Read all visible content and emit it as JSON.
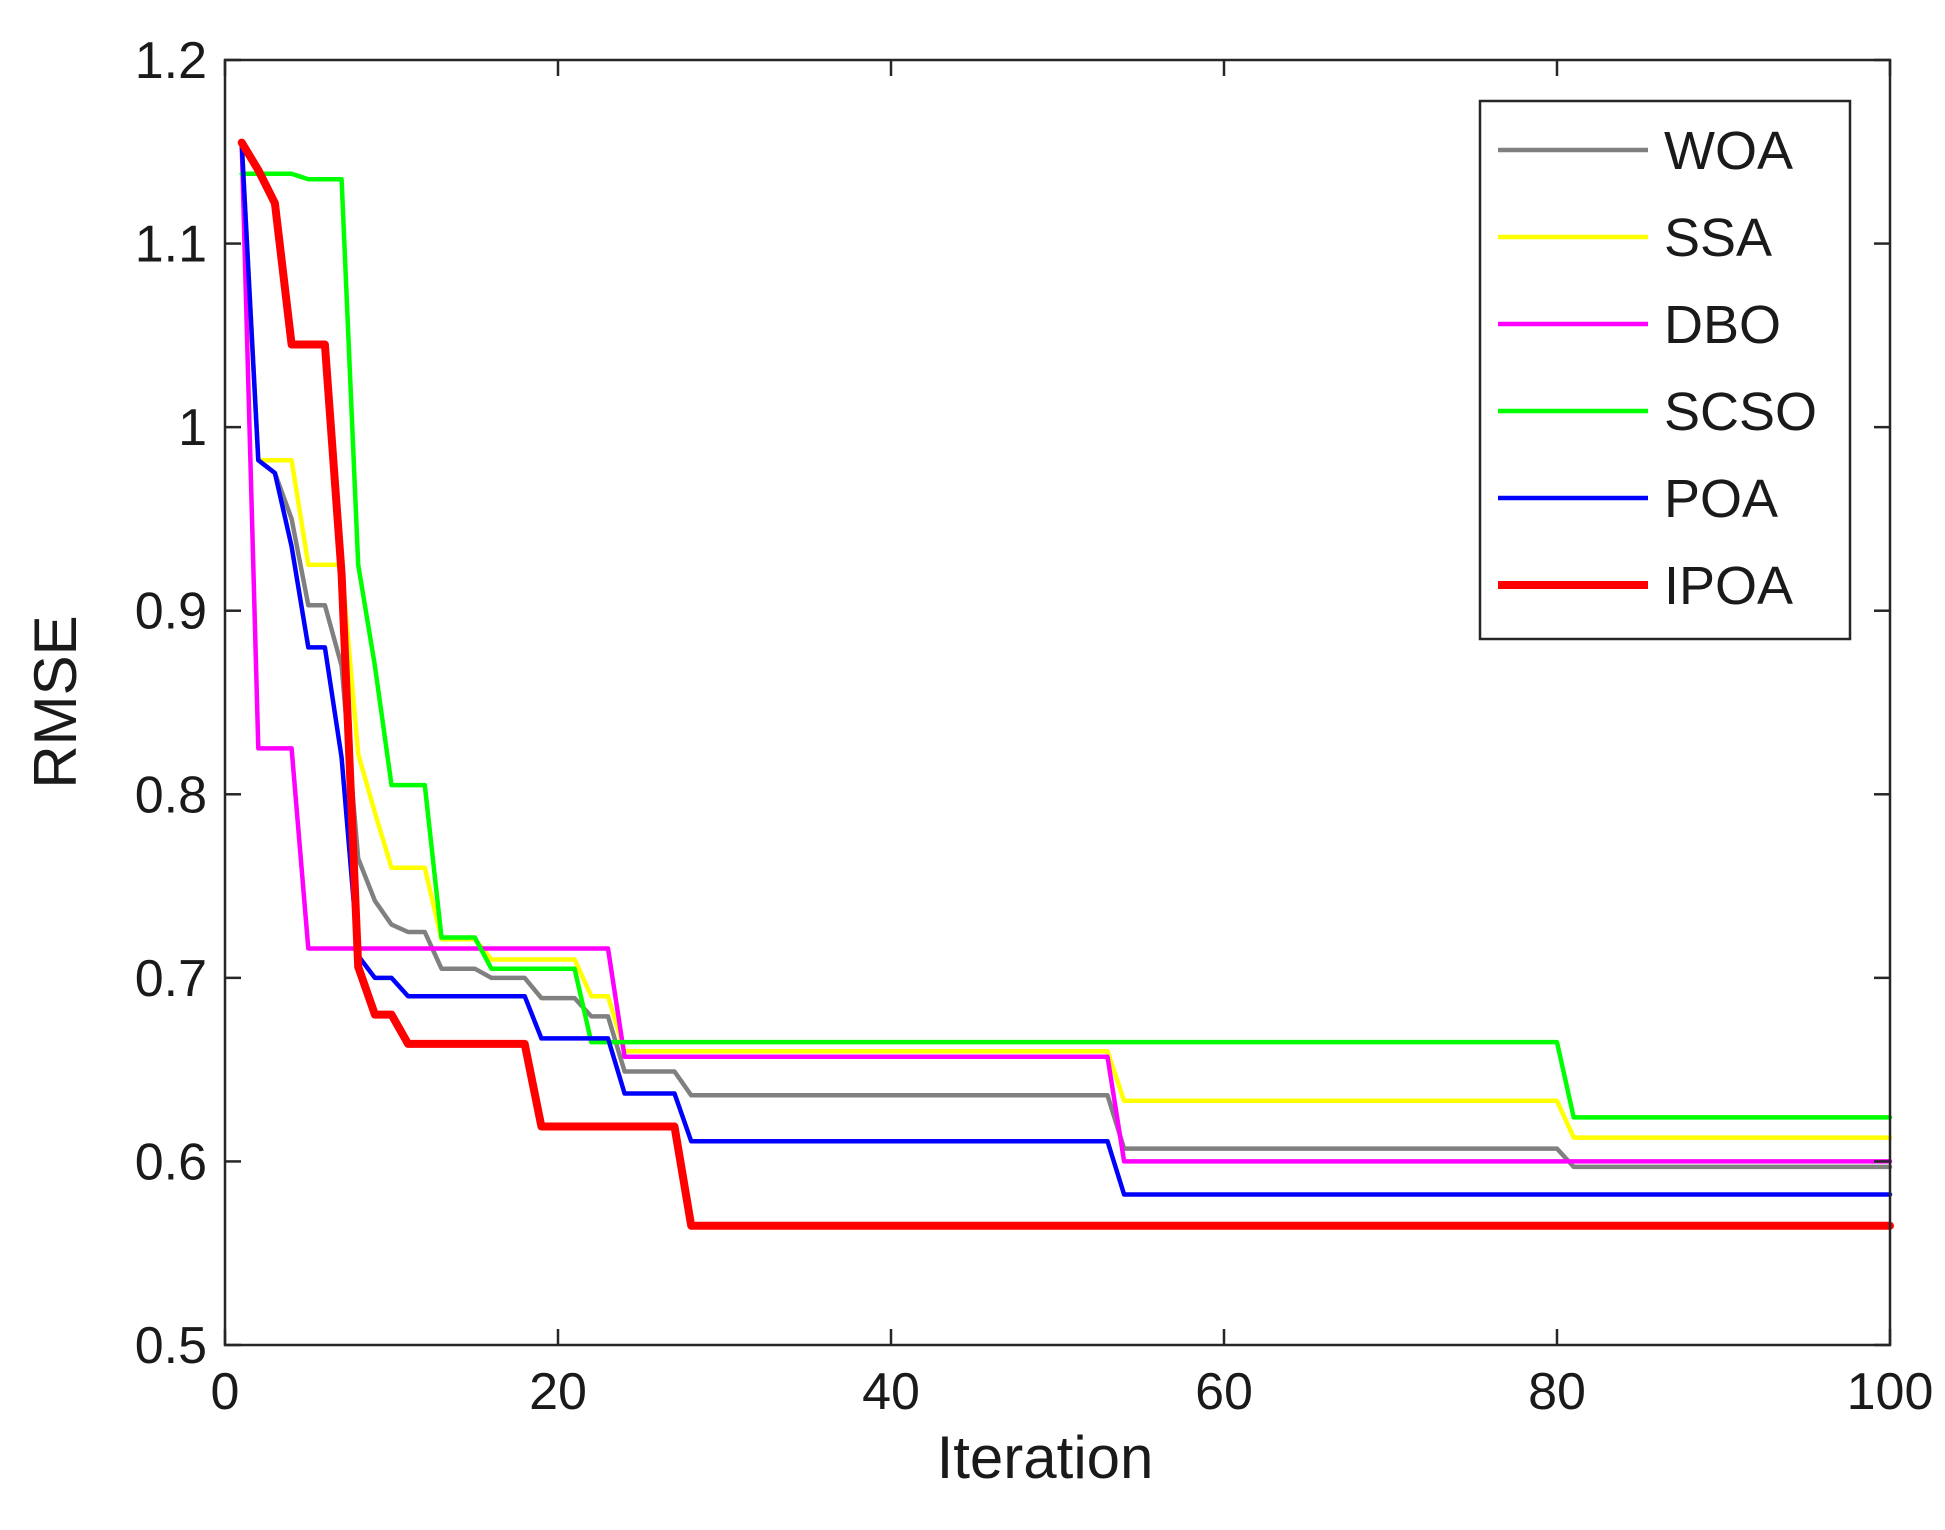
{
  "chart_data": {
    "type": "line",
    "title": "",
    "xlabel": "Iteration",
    "ylabel": "RMSE",
    "xlim": [
      0,
      100
    ],
    "ylim": [
      0.5,
      1.2
    ],
    "xticks": [
      0,
      20,
      40,
      60,
      80,
      100
    ],
    "xtick_labels": [
      "0",
      "20",
      "40",
      "60",
      "80",
      "100"
    ],
    "yticks": [
      0.5,
      0.6,
      0.7,
      0.8,
      0.9,
      1.0,
      1.1,
      1.2
    ],
    "ytick_labels": [
      "0.5",
      "0.6",
      "0.7",
      "0.8",
      "0.9",
      "1",
      "1.1",
      "1.2"
    ],
    "grid": false,
    "legend_position": "top-right",
    "series": [
      {
        "name": "WOA",
        "color": "#808080",
        "width": "normal",
        "x": [
          1,
          2,
          3,
          4,
          5,
          6,
          7,
          8,
          9,
          10,
          11,
          12,
          13,
          15,
          16,
          18,
          19,
          21,
          22,
          23,
          24,
          25,
          26,
          27,
          28,
          53,
          54,
          80,
          81,
          100
        ],
        "y": [
          1.155,
          0.982,
          0.975,
          0.95,
          0.903,
          0.903,
          0.87,
          0.765,
          0.742,
          0.729,
          0.725,
          0.725,
          0.705,
          0.705,
          0.7,
          0.7,
          0.689,
          0.689,
          0.679,
          0.679,
          0.649,
          0.649,
          0.649,
          0.649,
          0.636,
          0.636,
          0.607,
          0.607,
          0.597,
          0.597
        ]
      },
      {
        "name": "SSA",
        "color": "#ffff00",
        "width": "normal",
        "x": [
          1,
          2,
          3,
          4,
          5,
          6,
          7,
          8,
          9,
          10,
          12,
          13,
          15,
          16,
          21,
          22,
          23,
          24,
          25,
          53,
          54,
          80,
          81,
          100
        ],
        "y": [
          1.155,
          0.982,
          0.982,
          0.982,
          0.925,
          0.925,
          0.925,
          0.822,
          0.79,
          0.76,
          0.76,
          0.721,
          0.721,
          0.71,
          0.71,
          0.69,
          0.69,
          0.66,
          0.66,
          0.66,
          0.633,
          0.633,
          0.613,
          0.613
        ]
      },
      {
        "name": "DBO",
        "color": "#ff00ff",
        "width": "normal",
        "x": [
          1,
          2,
          3,
          4,
          5,
          6,
          10,
          20,
          22,
          23,
          24,
          25,
          53,
          54,
          100
        ],
        "y": [
          1.155,
          0.825,
          0.825,
          0.825,
          0.716,
          0.716,
          0.716,
          0.716,
          0.716,
          0.716,
          0.657,
          0.657,
          0.657,
          0.6,
          0.6
        ]
      },
      {
        "name": "SCSO",
        "color": "#00ff00",
        "width": "normal",
        "x": [
          1,
          2,
          3,
          4,
          5,
          6,
          7,
          8,
          9,
          10,
          11,
          12,
          13,
          14,
          15,
          16,
          20,
          21,
          22,
          23,
          25,
          80,
          81,
          100
        ],
        "y": [
          1.138,
          1.138,
          1.138,
          1.138,
          1.135,
          1.135,
          1.135,
          0.925,
          0.87,
          0.805,
          0.805,
          0.805,
          0.722,
          0.722,
          0.722,
          0.705,
          0.705,
          0.705,
          0.665,
          0.665,
          0.665,
          0.665,
          0.624,
          0.624
        ]
      },
      {
        "name": "POA",
        "color": "#0000ff",
        "width": "normal",
        "x": [
          1,
          2,
          3,
          4,
          5,
          6,
          7,
          8,
          9,
          10,
          11,
          13,
          17,
          18,
          19,
          22,
          23,
          24,
          25,
          26,
          27,
          28,
          53,
          54,
          100
        ],
        "y": [
          1.155,
          0.982,
          0.975,
          0.935,
          0.88,
          0.88,
          0.82,
          0.712,
          0.7,
          0.7,
          0.69,
          0.69,
          0.69,
          0.69,
          0.667,
          0.667,
          0.667,
          0.637,
          0.637,
          0.637,
          0.637,
          0.611,
          0.611,
          0.582,
          0.582
        ]
      },
      {
        "name": "IPOA",
        "color": "#ff0000",
        "width": "thick",
        "x": [
          1,
          2,
          3,
          4,
          5,
          6,
          7,
          8,
          9,
          10,
          11,
          12,
          18,
          19,
          20,
          27,
          28,
          100
        ],
        "y": [
          1.155,
          1.14,
          1.122,
          1.045,
          1.045,
          1.045,
          0.92,
          0.706,
          0.68,
          0.68,
          0.664,
          0.664,
          0.664,
          0.619,
          0.619,
          0.619,
          0.565,
          0.565
        ]
      }
    ]
  }
}
